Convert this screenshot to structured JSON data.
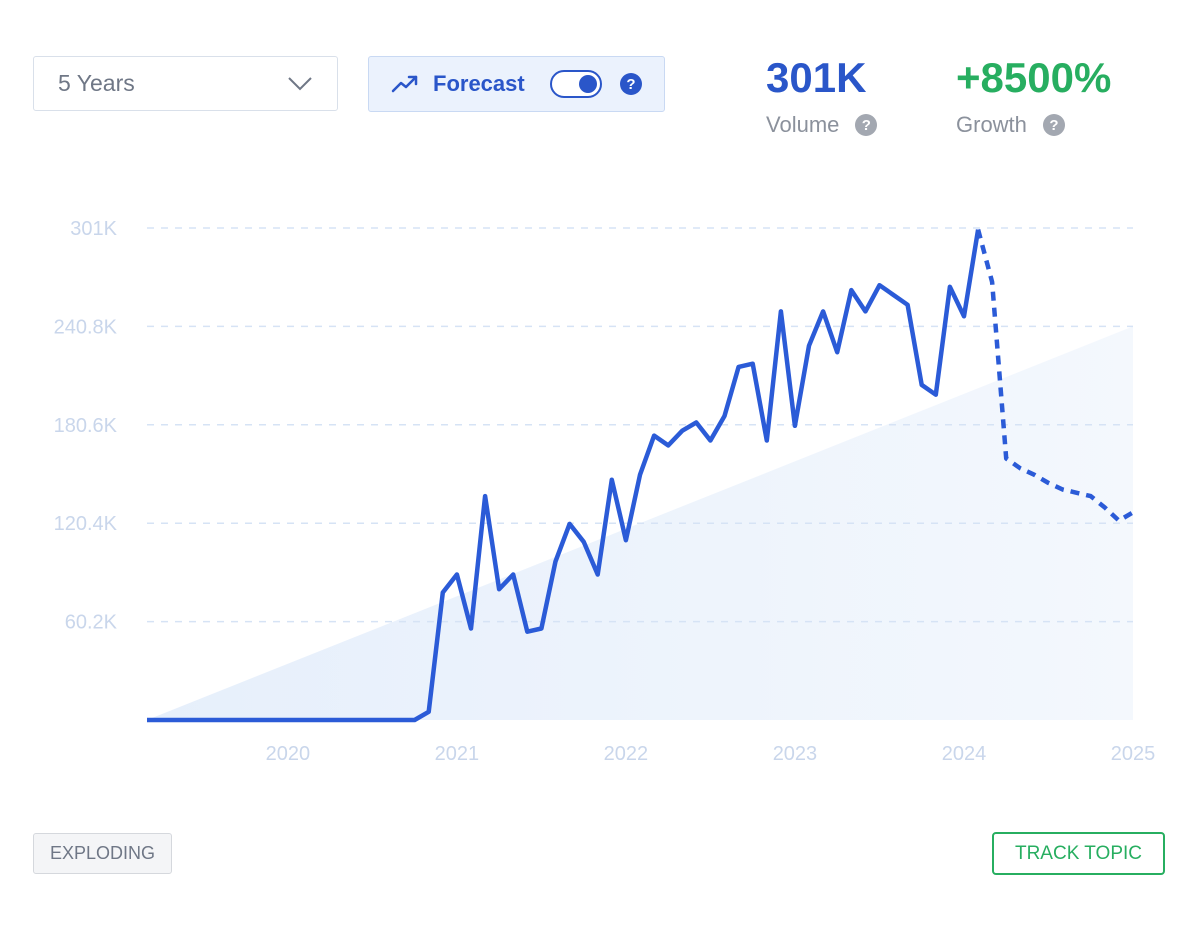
{
  "controls": {
    "range_label": "5 Years",
    "forecast_label": "Forecast",
    "forecast_enabled": true,
    "help_glyph": "?"
  },
  "stats": {
    "volume_value": "301K",
    "volume_label": "Volume",
    "growth_value": "+8500%",
    "growth_label": "Growth"
  },
  "colors": {
    "accent": "#2a56c9",
    "growth": "#27ae60",
    "line": "#2b5bd7",
    "area": "#e6effb",
    "grid": "#d6e3f5",
    "axis_text": "#c9d6eb"
  },
  "footer": {
    "badge_label": "EXPLODING",
    "track_label": "TRACK TOPIC"
  },
  "chart_data": {
    "type": "line",
    "title": "",
    "xlabel": "",
    "ylabel": "",
    "ylim": [
      0,
      301000
    ],
    "y_ticks": [
      {
        "value": 60200,
        "label": "60.2K"
      },
      {
        "value": 120400,
        "label": "120.4K"
      },
      {
        "value": 180600,
        "label": "180.6K"
      },
      {
        "value": 240800,
        "label": "240.8K"
      },
      {
        "value": 301000,
        "label": "301K"
      }
    ],
    "xlim": [
      "2019-03",
      "2025-01"
    ],
    "x_ticks": [
      {
        "value": "2020-01",
        "label": "2020"
      },
      {
        "value": "2021-01",
        "label": "2021"
      },
      {
        "value": "2022-01",
        "label": "2022"
      },
      {
        "value": "2023-01",
        "label": "2023"
      },
      {
        "value": "2024-01",
        "label": "2024"
      },
      {
        "value": "2025-01",
        "label": "2025"
      }
    ],
    "grid": true,
    "series": [
      {
        "style": "solid",
        "points": [
          [
            "2019-03",
            0
          ],
          [
            "2020-10",
            0
          ],
          [
            "2020-11",
            5000
          ],
          [
            "2020-12",
            78000
          ],
          [
            "2021-01",
            89000
          ],
          [
            "2021-02",
            56000
          ],
          [
            "2021-03",
            137000
          ],
          [
            "2021-04",
            80000
          ],
          [
            "2021-05",
            89000
          ],
          [
            "2021-06",
            54000
          ],
          [
            "2021-07",
            56000
          ],
          [
            "2021-08",
            97000
          ],
          [
            "2021-09",
            120000
          ],
          [
            "2021-10",
            109000
          ],
          [
            "2021-11",
            89000
          ],
          [
            "2021-12",
            147000
          ],
          [
            "2022-01",
            110000
          ],
          [
            "2022-02",
            150000
          ],
          [
            "2022-03",
            174000
          ],
          [
            "2022-04",
            168000
          ],
          [
            "2022-05",
            177000
          ],
          [
            "2022-06",
            182000
          ],
          [
            "2022-07",
            171000
          ],
          [
            "2022-08",
            186000
          ],
          [
            "2022-09",
            216000
          ],
          [
            "2022-10",
            218000
          ],
          [
            "2022-11",
            171000
          ],
          [
            "2022-12",
            250000
          ],
          [
            "2023-01",
            180000
          ],
          [
            "2023-02",
            229000
          ],
          [
            "2023-03",
            250000
          ],
          [
            "2023-04",
            225000
          ],
          [
            "2023-05",
            263000
          ],
          [
            "2023-06",
            250000
          ],
          [
            "2023-07",
            266000
          ],
          [
            "2023-08",
            260000
          ],
          [
            "2023-09",
            254000
          ],
          [
            "2023-10",
            205000
          ],
          [
            "2023-11",
            199000
          ],
          [
            "2023-12",
            265000
          ],
          [
            "2024-01",
            247000
          ],
          [
            "2024-02",
            300000
          ]
        ]
      },
      {
        "style": "dashed",
        "points": [
          [
            "2024-02",
            300000
          ],
          [
            "2024-03",
            268000
          ],
          [
            "2024-04",
            160000
          ],
          [
            "2024-05",
            154000
          ],
          [
            "2024-06",
            150000
          ],
          [
            "2024-07",
            145000
          ],
          [
            "2024-08",
            141000
          ],
          [
            "2024-09",
            139000
          ],
          [
            "2024-10",
            137000
          ],
          [
            "2024-11",
            130000
          ],
          [
            "2024-12",
            122000
          ],
          [
            "2025-01",
            127000
          ]
        ]
      }
    ],
    "trend_area": {
      "from": [
        "2019-03",
        0
      ],
      "to": [
        "2025-01",
        240800
      ]
    }
  }
}
